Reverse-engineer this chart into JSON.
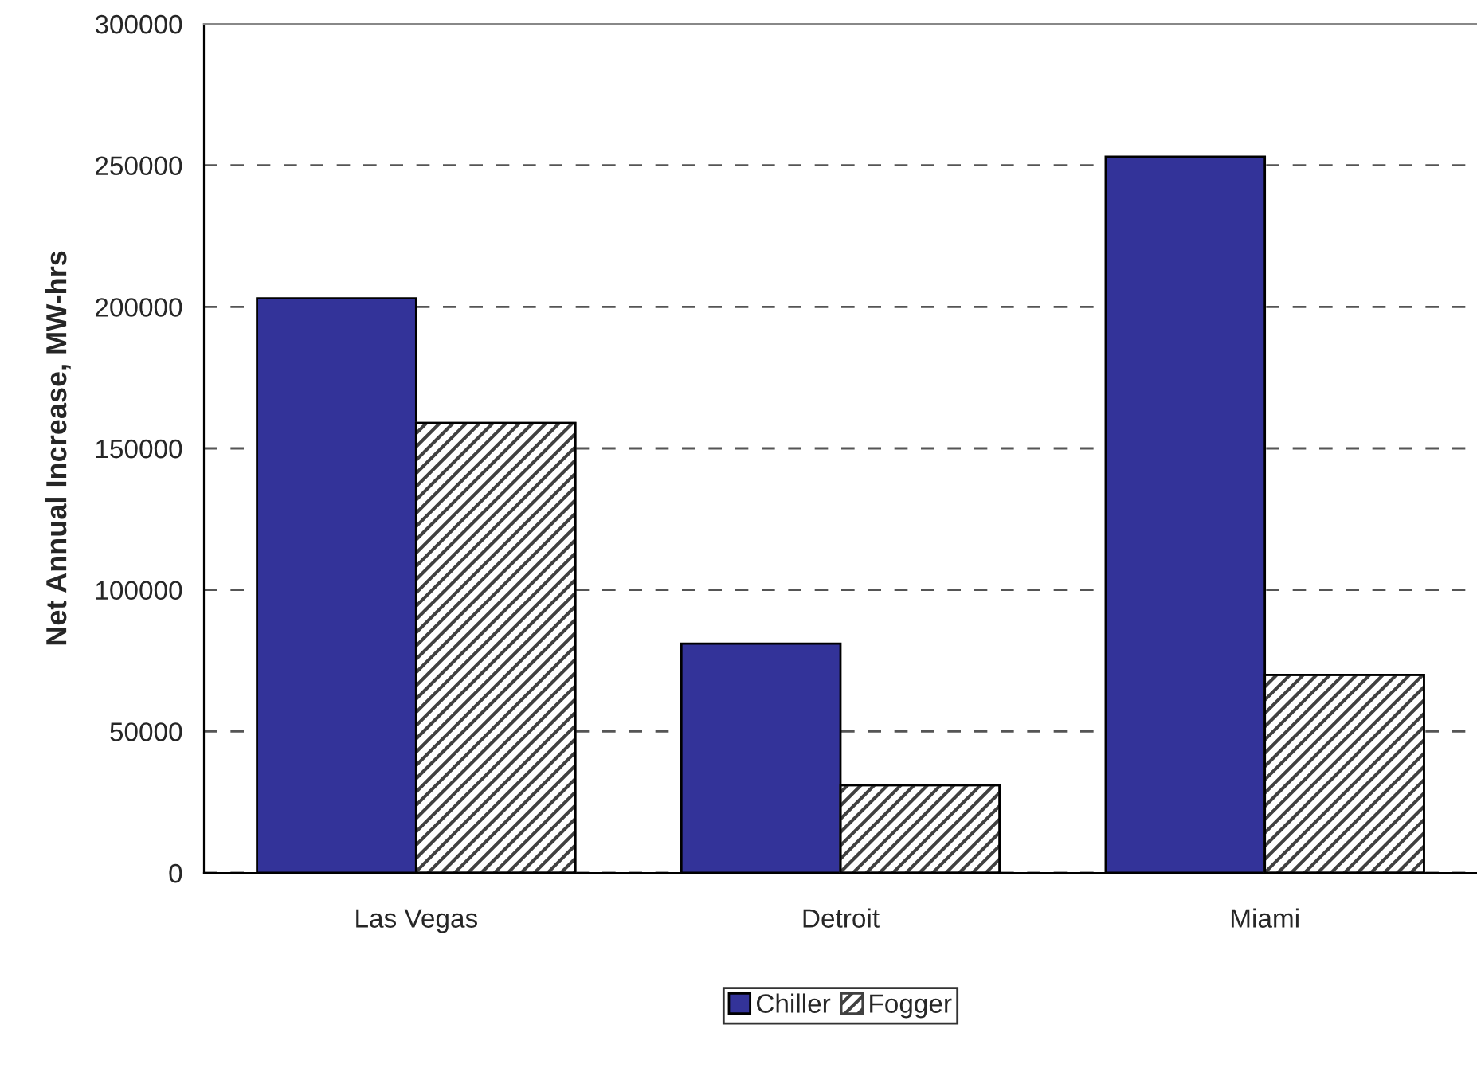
{
  "chart_data": {
    "type": "bar",
    "ylabel": "Net Annual Increase, MW-hrs",
    "categories": [
      "Las Vegas",
      "Detroit",
      "Miami"
    ],
    "series": [
      {
        "name": "Chiller",
        "color": "#333399",
        "values": [
          203000,
          81000,
          253000
        ]
      },
      {
        "name": "Fogger",
        "color": "#404040",
        "values": [
          159000,
          31000,
          70000
        ]
      }
    ],
    "ylim": [
      0,
      300000
    ],
    "yticks": [
      0,
      50000,
      100000,
      150000,
      200000,
      250000,
      300000
    ],
    "grid": "y",
    "legend": "bottom"
  }
}
